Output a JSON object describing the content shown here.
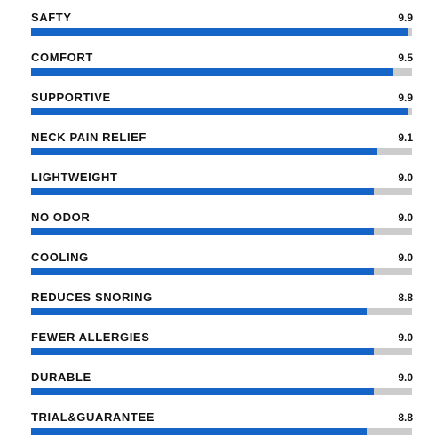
{
  "chart_data": {
    "type": "bar",
    "orientation": "horizontal",
    "categories": [
      "SAFTY",
      "COMFORT",
      "SUPPORTIVE",
      "NECK PAIN RELIEF",
      "LIGHTWEIGHT",
      "NO ODOR",
      "COOLING",
      "REDUCES SNORING",
      "FEWER ALLERGIES",
      "DURABLE",
      "TRIAL&GUARANTEE"
    ],
    "values": [
      9.9,
      9.5,
      9.9,
      9.1,
      9.0,
      9.0,
      9.0,
      8.8,
      9.0,
      9.0,
      8.8
    ],
    "value_labels": [
      "9.9",
      "9.5",
      "9.9",
      "9.1",
      "9.0",
      "9.0",
      "9.0",
      "8.8",
      "9.0",
      "9.0",
      "8.8"
    ],
    "xlim": [
      0,
      10
    ],
    "grid": false,
    "legend": "none"
  },
  "colors": {
    "bar_fill": "#1565c8",
    "bar_track": "#cccccc",
    "text": "#111111"
  }
}
